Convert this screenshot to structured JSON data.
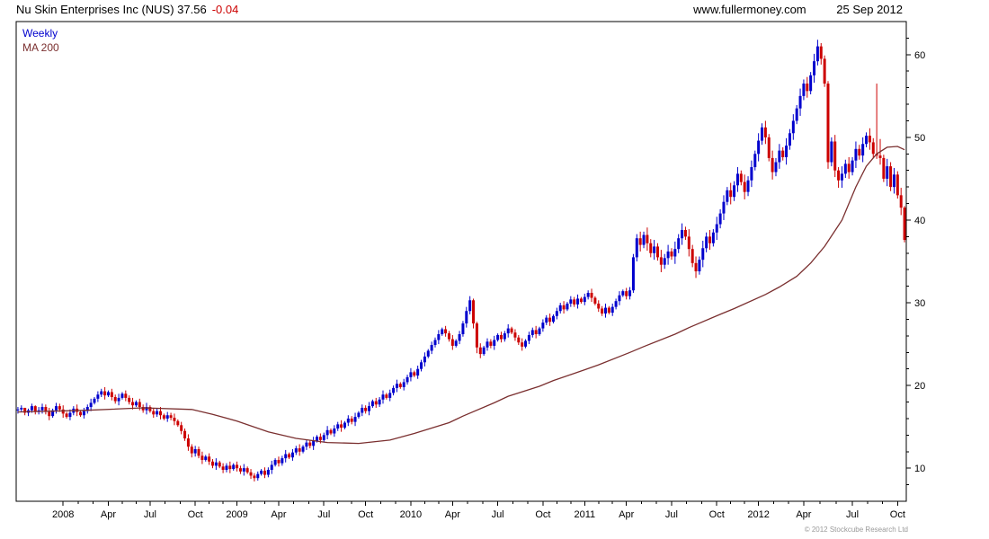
{
  "header": {
    "title": "Nu Skin Enterprises Inc (NUS) 37.56",
    "change": "-0.04",
    "site": "www.fullermoney.com",
    "date": "25 Sep 2012"
  },
  "legend": {
    "series_label": "Weekly",
    "ma_label": "MA 200"
  },
  "footer": {
    "copyright": "© 2012 Stockcube Research Ltd"
  },
  "chart_data": {
    "type": "candlestick",
    "instrument": "Nu Skin Enterprises Inc (NUS)",
    "timeframe": "Weekly",
    "last_price": 37.56,
    "change": -0.04,
    "date": "25 Sep 2012",
    "ylim": [
      6,
      64
    ],
    "y_ticks": [
      10,
      20,
      30,
      40,
      50,
      60
    ],
    "y_minor_step": 2,
    "x_ticks": [
      {
        "label": "2008",
        "week": 13
      },
      {
        "label": "Apr",
        "week": 26
      },
      {
        "label": "Jul",
        "week": 38
      },
      {
        "label": "Oct",
        "week": 51
      },
      {
        "label": "2009",
        "week": 63
      },
      {
        "label": "Apr",
        "week": 75
      },
      {
        "label": "Jul",
        "week": 88
      },
      {
        "label": "Oct",
        "week": 100
      },
      {
        "label": "2010",
        "week": 113
      },
      {
        "label": "Apr",
        "week": 125
      },
      {
        "label": "Jul",
        "week": 138
      },
      {
        "label": "Oct",
        "week": 151
      },
      {
        "label": "2011",
        "week": 163
      },
      {
        "label": "Apr",
        "week": 175
      },
      {
        "label": "Jul",
        "week": 188
      },
      {
        "label": "Oct",
        "week": 201
      },
      {
        "label": "2012",
        "week": 213
      },
      {
        "label": "Apr",
        "week": 226
      },
      {
        "label": "Jul",
        "week": 240
      },
      {
        "label": "Oct",
        "week": 253
      }
    ],
    "colors": {
      "up": "#0000cd",
      "down": "#cc0000",
      "ma": "#7a2f2f",
      "axis": "#000000"
    },
    "candle_format": "[high, low, close]; open = previous candle close",
    "candles": [
      [
        17.4,
        16.6,
        17.1
      ],
      [
        17.6,
        16.8,
        17.3
      ],
      [
        17.3,
        16.4,
        16.7
      ],
      [
        17.2,
        16.3,
        17.0
      ],
      [
        17.8,
        16.7,
        17.5
      ],
      [
        17.6,
        16.5,
        16.9
      ],
      [
        17.4,
        16.5,
        17.0
      ],
      [
        17.8,
        16.6,
        17.4
      ],
      [
        17.7,
        16.5,
        16.8
      ],
      [
        17.3,
        15.8,
        16.3
      ],
      [
        17.2,
        16.1,
        17.0
      ],
      [
        17.9,
        16.6,
        17.5
      ],
      [
        17.8,
        16.8,
        17.1
      ],
      [
        17.6,
        16.1,
        16.6
      ],
      [
        16.8,
        16.0,
        16.2
      ],
      [
        17.1,
        15.8,
        16.7
      ],
      [
        17.5,
        16.4,
        17.2
      ],
      [
        17.7,
        16.3,
        16.8
      ],
      [
        17.0,
        16.2,
        16.4
      ],
      [
        17.3,
        16.0,
        16.9
      ],
      [
        17.7,
        16.6,
        17.4
      ],
      [
        18.4,
        16.9,
        17.9
      ],
      [
        18.6,
        17.7,
        18.4
      ],
      [
        19.3,
        18.0,
        18.9
      ],
      [
        19.6,
        18.6,
        19.3
      ],
      [
        19.8,
        18.3,
        18.8
      ],
      [
        19.4,
        18.6,
        19.2
      ],
      [
        19.6,
        18.2,
        18.6
      ],
      [
        18.9,
        17.8,
        18.1
      ],
      [
        19.0,
        17.6,
        18.5
      ],
      [
        19.2,
        18.3,
        19.0
      ],
      [
        19.4,
        18.1,
        18.5
      ],
      [
        18.8,
        17.7,
        18.0
      ],
      [
        18.5,
        17.1,
        17.6
      ],
      [
        18.2,
        17.4,
        18.0
      ],
      [
        18.4,
        17.0,
        17.4
      ],
      [
        17.7,
        16.7,
        17.0
      ],
      [
        17.9,
        16.5,
        17.4
      ],
      [
        17.6,
        16.7,
        16.9
      ],
      [
        17.3,
        16.1,
        16.5
      ],
      [
        17.2,
        16.2,
        16.9
      ],
      [
        17.4,
        15.9,
        16.4
      ],
      [
        16.6,
        15.8,
        16.0
      ],
      [
        16.8,
        15.6,
        16.4
      ],
      [
        16.7,
        15.8,
        16.1
      ],
      [
        16.6,
        15.2,
        15.7
      ],
      [
        15.9,
        15.0,
        15.2
      ],
      [
        15.6,
        14.1,
        14.5
      ],
      [
        14.8,
        13.3,
        13.6
      ],
      [
        14.1,
        12.1,
        12.6
      ],
      [
        12.9,
        11.3,
        11.8
      ],
      [
        12.7,
        11.4,
        12.3
      ],
      [
        12.6,
        11.2,
        11.5
      ],
      [
        12.0,
        10.5,
        11.0
      ],
      [
        11.6,
        10.8,
        11.4
      ],
      [
        11.8,
        10.4,
        10.8
      ],
      [
        11.1,
        10.0,
        10.3
      ],
      [
        11.2,
        9.8,
        10.7
      ],
      [
        10.9,
        10.0,
        10.2
      ],
      [
        10.6,
        9.4,
        9.8
      ],
      [
        10.6,
        9.5,
        10.3
      ],
      [
        10.8,
        9.4,
        9.9
      ],
      [
        10.6,
        9.7,
        10.4
      ],
      [
        10.8,
        9.6,
        10.0
      ],
      [
        10.3,
        9.3,
        9.6
      ],
      [
        10.5,
        9.1,
        10.0
      ],
      [
        10.2,
        9.3,
        9.5
      ],
      [
        9.9,
        8.7,
        9.1
      ],
      [
        9.4,
        8.4,
        8.8
      ],
      [
        9.6,
        8.5,
        9.3
      ],
      [
        9.9,
        9.1,
        9.7
      ],
      [
        10.1,
        8.8,
        9.2
      ],
      [
        10.1,
        8.9,
        9.8
      ],
      [
        10.9,
        9.3,
        10.4
      ],
      [
        11.2,
        10.2,
        11.0
      ],
      [
        11.4,
        10.2,
        10.6
      ],
      [
        11.5,
        10.3,
        11.2
      ],
      [
        12.2,
        10.7,
        11.7
      ],
      [
        11.9,
        11.1,
        11.3
      ],
      [
        12.3,
        10.9,
        11.9
      ],
      [
        12.7,
        11.6,
        12.4
      ],
      [
        12.9,
        11.5,
        12.0
      ],
      [
        12.8,
        11.8,
        12.6
      ],
      [
        13.5,
        12.2,
        13.1
      ],
      [
        13.4,
        12.4,
        12.7
      ],
      [
        13.8,
        12.2,
        13.3
      ],
      [
        14.0,
        13.1,
        13.8
      ],
      [
        14.2,
        13.0,
        13.4
      ],
      [
        14.3,
        13.1,
        14.0
      ],
      [
        15.1,
        13.5,
        14.6
      ],
      [
        14.8,
        14.0,
        14.2
      ],
      [
        15.2,
        13.8,
        14.8
      ],
      [
        15.6,
        14.5,
        15.3
      ],
      [
        15.8,
        14.4,
        14.9
      ],
      [
        15.7,
        14.7,
        15.5
      ],
      [
        16.4,
        15.1,
        16.0
      ],
      [
        16.3,
        15.3,
        15.6
      ],
      [
        16.7,
        15.1,
        16.2
      ],
      [
        16.9,
        16.0,
        16.7
      ],
      [
        17.7,
        16.3,
        17.3
      ],
      [
        17.6,
        16.6,
        16.9
      ],
      [
        18.0,
        16.4,
        17.5
      ],
      [
        18.3,
        17.3,
        18.1
      ],
      [
        18.5,
        17.3,
        17.7
      ],
      [
        18.6,
        17.4,
        18.3
      ],
      [
        19.4,
        17.8,
        18.9
      ],
      [
        19.1,
        18.3,
        18.5
      ],
      [
        19.5,
        18.1,
        19.1
      ],
      [
        20.0,
        18.8,
        19.7
      ],
      [
        20.7,
        19.2,
        20.2
      ],
      [
        20.4,
        19.6,
        19.8
      ],
      [
        20.8,
        19.4,
        20.4
      ],
      [
        21.3,
        20.1,
        21.0
      ],
      [
        22.1,
        20.5,
        21.6
      ],
      [
        21.8,
        21.0,
        21.2
      ],
      [
        22.4,
        20.8,
        22.0
      ],
      [
        23.1,
        21.7,
        22.8
      ],
      [
        24.0,
        22.3,
        23.5
      ],
      [
        24.4,
        23.3,
        24.2
      ],
      [
        25.3,
        23.8,
        24.9
      ],
      [
        25.8,
        24.6,
        25.5
      ],
      [
        26.7,
        25.0,
        26.2
      ],
      [
        27.0,
        26.0,
        26.8
      ],
      [
        27.2,
        25.9,
        26.3
      ],
      [
        26.6,
        25.3,
        25.6
      ],
      [
        26.1,
        24.3,
        24.8
      ],
      [
        25.6,
        24.6,
        25.4
      ],
      [
        26.6,
        25.0,
        26.2
      ],
      [
        27.8,
        25.9,
        27.5
      ],
      [
        29.5,
        27.0,
        29.0
      ],
      [
        30.8,
        28.6,
        30.3
      ],
      [
        30.5,
        26.9,
        27.5
      ],
      [
        27.7,
        23.9,
        24.6
      ],
      [
        25.1,
        23.3,
        23.8
      ],
      [
        24.8,
        23.6,
        24.6
      ],
      [
        25.7,
        24.2,
        25.3
      ],
      [
        25.6,
        24.5,
        24.8
      ],
      [
        26.0,
        24.3,
        25.5
      ],
      [
        26.3,
        25.3,
        26.1
      ],
      [
        26.5,
        25.2,
        25.6
      ],
      [
        26.6,
        25.3,
        26.3
      ],
      [
        27.4,
        25.8,
        26.9
      ],
      [
        27.1,
        26.2,
        26.4
      ],
      [
        26.8,
        25.4,
        25.8
      ],
      [
        26.1,
        24.9,
        25.2
      ],
      [
        25.7,
        24.2,
        24.7
      ],
      [
        25.6,
        24.5,
        25.4
      ],
      [
        26.5,
        25.0,
        26.1
      ],
      [
        27.0,
        25.8,
        26.7
      ],
      [
        27.2,
        25.7,
        26.2
      ],
      [
        27.1,
        26.0,
        26.9
      ],
      [
        28.0,
        26.5,
        27.6
      ],
      [
        28.5,
        27.3,
        28.2
      ],
      [
        28.7,
        27.2,
        27.7
      ],
      [
        28.6,
        27.5,
        28.4
      ],
      [
        29.4,
        28.0,
        29.0
      ],
      [
        30.0,
        28.7,
        29.7
      ],
      [
        30.2,
        28.7,
        29.2
      ],
      [
        30.1,
        29.0,
        29.9
      ],
      [
        30.8,
        29.5,
        30.4
      ],
      [
        30.7,
        29.5,
        29.8
      ],
      [
        31.0,
        29.3,
        30.5
      ],
      [
        30.7,
        29.9,
        30.1
      ],
      [
        31.1,
        29.7,
        30.7
      ],
      [
        31.5,
        30.4,
        31.2
      ],
      [
        31.7,
        30.1,
        30.6
      ],
      [
        30.8,
        29.7,
        29.9
      ],
      [
        30.3,
        28.9,
        29.3
      ],
      [
        29.6,
        28.4,
        28.7
      ],
      [
        29.9,
        28.2,
        29.4
      ],
      [
        29.6,
        28.6,
        28.8
      ],
      [
        29.9,
        28.4,
        29.5
      ],
      [
        30.5,
        29.2,
        30.2
      ],
      [
        31.4,
        29.7,
        30.9
      ],
      [
        31.6,
        30.7,
        31.4
      ],
      [
        31.8,
        30.4,
        30.8
      ],
      [
        31.9,
        30.4,
        31.5
      ],
      [
        35.9,
        31.2,
        35.5
      ],
      [
        38.3,
        35.0,
        37.8
      ],
      [
        38.6,
        36.2,
        37.0
      ],
      [
        38.6,
        36.6,
        38.2
      ],
      [
        39.1,
        36.3,
        37.2
      ],
      [
        37.7,
        35.5,
        36.0
      ],
      [
        37.6,
        35.2,
        36.8
      ],
      [
        37.2,
        35.1,
        35.5
      ],
      [
        36.4,
        33.7,
        34.6
      ],
      [
        35.9,
        34.1,
        35.4
      ],
      [
        37.0,
        34.6,
        36.2
      ],
      [
        36.6,
        35.2,
        35.6
      ],
      [
        37.4,
        34.7,
        36.5
      ],
      [
        38.3,
        36.0,
        37.8
      ],
      [
        39.6,
        37.0,
        38.8
      ],
      [
        39.2,
        37.6,
        38.0
      ],
      [
        38.9,
        35.6,
        36.5
      ],
      [
        37.0,
        34.3,
        34.8
      ],
      [
        35.6,
        33.0,
        33.8
      ],
      [
        35.6,
        33.4,
        35.2
      ],
      [
        37.5,
        34.3,
        36.6
      ],
      [
        38.5,
        36.1,
        38.0
      ],
      [
        38.8,
        36.4,
        37.2
      ],
      [
        38.9,
        36.8,
        38.5
      ],
      [
        40.4,
        37.6,
        39.5
      ],
      [
        41.3,
        39.0,
        40.8
      ],
      [
        43.0,
        40.0,
        42.2
      ],
      [
        44.0,
        41.8,
        43.6
      ],
      [
        44.5,
        41.9,
        42.8
      ],
      [
        44.7,
        42.3,
        44.2
      ],
      [
        46.4,
        43.4,
        45.6
      ],
      [
        46.0,
        44.2,
        44.6
      ],
      [
        45.5,
        42.5,
        43.4
      ],
      [
        45.3,
        42.9,
        44.8
      ],
      [
        47.2,
        44.0,
        46.4
      ],
      [
        48.4,
        46.0,
        48.0
      ],
      [
        50.5,
        47.1,
        49.6
      ],
      [
        51.7,
        49.1,
        51.2
      ],
      [
        52.0,
        49.2,
        50.0
      ],
      [
        50.4,
        47.1,
        47.5
      ],
      [
        48.4,
        44.9,
        45.8
      ],
      [
        47.5,
        45.3,
        47.0
      ],
      [
        49.2,
        46.2,
        48.4
      ],
      [
        48.8,
        47.2,
        47.6
      ],
      [
        49.9,
        46.7,
        49.0
      ],
      [
        51.0,
        48.5,
        50.5
      ],
      [
        52.8,
        49.7,
        52.0
      ],
      [
        53.9,
        51.6,
        53.5
      ],
      [
        55.9,
        52.6,
        55.0
      ],
      [
        57.0,
        54.5,
        56.5
      ],
      [
        57.3,
        54.8,
        55.6
      ],
      [
        57.9,
        55.2,
        57.5
      ],
      [
        60.1,
        56.6,
        59.2
      ],
      [
        61.8,
        58.7,
        61.0
      ],
      [
        61.4,
        58.8,
        59.5
      ],
      [
        59.9,
        56.1,
        56.5
      ],
      [
        56.8,
        46.2,
        47.0
      ],
      [
        50.0,
        46.5,
        49.5
      ],
      [
        50.3,
        45.2,
        46.0
      ],
      [
        46.4,
        43.9,
        44.8
      ],
      [
        46.5,
        43.9,
        45.6
      ],
      [
        47.3,
        45.1,
        46.8
      ],
      [
        47.6,
        45.0,
        45.8
      ],
      [
        47.6,
        45.4,
        47.2
      ],
      [
        49.5,
        46.3,
        48.6
      ],
      [
        49.1,
        47.3,
        47.8
      ],
      [
        50.0,
        47.0,
        49.2
      ],
      [
        50.6,
        48.8,
        50.2
      ],
      [
        51.1,
        48.5,
        49.4
      ],
      [
        49.9,
        47.5,
        48.0
      ],
      [
        56.5,
        47.4,
        47.8
      ],
      [
        49.8,
        46.7,
        47.5
      ],
      [
        47.9,
        44.6,
        45.0
      ],
      [
        47.4,
        44.1,
        46.5
      ],
      [
        47.0,
        43.5,
        44.0
      ],
      [
        46.3,
        43.2,
        45.5
      ],
      [
        45.9,
        42.6,
        43.0
      ],
      [
        43.9,
        40.6,
        41.5
      ],
      [
        41.7,
        37.3,
        37.6
      ]
    ],
    "ma_200": [
      [
        0,
        16.8
      ],
      [
        20,
        17.0
      ],
      [
        36,
        17.3
      ],
      [
        50,
        17.1
      ],
      [
        56,
        16.5
      ],
      [
        63,
        15.7
      ],
      [
        72,
        14.4
      ],
      [
        80,
        13.6
      ],
      [
        89,
        13.1
      ],
      [
        98,
        13.0
      ],
      [
        107,
        13.4
      ],
      [
        114,
        14.2
      ],
      [
        124,
        15.5
      ],
      [
        128,
        16.3
      ],
      [
        137,
        17.9
      ],
      [
        141,
        18.7
      ],
      [
        150,
        19.9
      ],
      [
        154,
        20.6
      ],
      [
        163,
        21.9
      ],
      [
        167,
        22.5
      ],
      [
        176,
        24.0
      ],
      [
        180,
        24.7
      ],
      [
        189,
        26.2
      ],
      [
        193,
        27.0
      ],
      [
        202,
        28.6
      ],
      [
        206,
        29.3
      ],
      [
        215,
        31.0
      ],
      [
        219,
        31.9
      ],
      [
        224,
        33.2
      ],
      [
        228,
        34.8
      ],
      [
        232,
        36.8
      ],
      [
        237,
        40.0
      ],
      [
        241,
        44.0
      ],
      [
        244,
        46.5
      ],
      [
        247,
        48.0
      ],
      [
        250,
        48.8
      ],
      [
        253,
        48.9
      ],
      [
        255,
        48.5
      ]
    ]
  }
}
